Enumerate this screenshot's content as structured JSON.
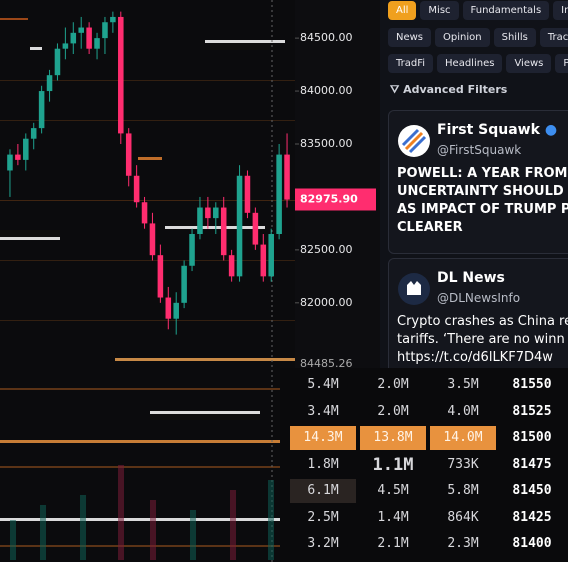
{
  "chart": {
    "type": "candlestick",
    "ylim": [
      81460,
      84860
    ],
    "yticks": [
      {
        "value": 84500,
        "label": "84500.00"
      },
      {
        "value": 84000,
        "label": "84000.00"
      },
      {
        "value": 83500,
        "label": "83500.00"
      },
      {
        "value": 82500,
        "label": "82500.00"
      },
      {
        "value": 82000,
        "label": "82000.00"
      }
    ],
    "current_price": {
      "value": 82975.9,
      "label": "82975.90"
    },
    "lower_pane_price": "84485.26",
    "up_color": "#1fa38f",
    "down_color": "#ff2d6f",
    "candles": [
      {
        "open": 83250,
        "high": 83450,
        "low": 83000,
        "close": 83400
      },
      {
        "open": 83400,
        "high": 83500,
        "low": 83300,
        "close": 83350
      },
      {
        "open": 83350,
        "high": 83600,
        "low": 83250,
        "close": 83550
      },
      {
        "open": 83550,
        "high": 83700,
        "low": 83450,
        "close": 83650
      },
      {
        "open": 83650,
        "high": 84050,
        "low": 83600,
        "close": 84000
      },
      {
        "open": 84000,
        "high": 84200,
        "low": 83900,
        "close": 84150
      },
      {
        "open": 84150,
        "high": 84450,
        "low": 84100,
        "close": 84400
      },
      {
        "open": 84400,
        "high": 84600,
        "low": 84300,
        "close": 84450
      },
      {
        "open": 84450,
        "high": 84650,
        "low": 84350,
        "close": 84550
      },
      {
        "open": 84550,
        "high": 84700,
        "low": 84400,
        "close": 84600
      },
      {
        "open": 84600,
        "high": 84650,
        "low": 84350,
        "close": 84400
      },
      {
        "open": 84400,
        "high": 84550,
        "low": 84300,
        "close": 84500
      },
      {
        "open": 84500,
        "high": 84700,
        "low": 84350,
        "close": 84650
      },
      {
        "open": 84650,
        "high": 84750,
        "low": 84550,
        "close": 84700
      },
      {
        "open": 84700,
        "high": 84750,
        "low": 83500,
        "close": 83600
      },
      {
        "open": 83600,
        "high": 83650,
        "low": 83100,
        "close": 83200
      },
      {
        "open": 83200,
        "high": 83300,
        "low": 82900,
        "close": 82950
      },
      {
        "open": 82950,
        "high": 83000,
        "low": 82700,
        "close": 82750
      },
      {
        "open": 82750,
        "high": 82850,
        "low": 82400,
        "close": 82450
      },
      {
        "open": 82450,
        "high": 82550,
        "low": 82000,
        "close": 82050
      },
      {
        "open": 82050,
        "high": 82150,
        "low": 81750,
        "close": 81850
      },
      {
        "open": 81850,
        "high": 82100,
        "low": 81700,
        "close": 82000
      },
      {
        "open": 82000,
        "high": 82400,
        "low": 81950,
        "close": 82350
      },
      {
        "open": 82350,
        "high": 82700,
        "low": 82300,
        "close": 82650
      },
      {
        "open": 82650,
        "high": 83000,
        "low": 82600,
        "close": 82900
      },
      {
        "open": 82900,
        "high": 83000,
        "low": 82700,
        "close": 82800
      },
      {
        "open": 82800,
        "high": 82950,
        "low": 82650,
        "close": 82900
      },
      {
        "open": 82900,
        "high": 83000,
        "low": 82400,
        "close": 82450
      },
      {
        "open": 82450,
        "high": 82500,
        "low": 82200,
        "close": 82250
      },
      {
        "open": 82250,
        "high": 83300,
        "low": 82200,
        "close": 83200
      },
      {
        "open": 83200,
        "high": 83250,
        "low": 82800,
        "close": 82850
      },
      {
        "open": 82850,
        "high": 82900,
        "low": 82500,
        "close": 82550
      },
      {
        "open": 82550,
        "high": 82650,
        "low": 82200,
        "close": 82250
      },
      {
        "open": 82250,
        "high": 82700,
        "low": 82200,
        "close": 82650
      },
      {
        "open": 82650,
        "high": 83500,
        "low": 82600,
        "close": 83400
      },
      {
        "open": 83400,
        "high": 83600,
        "low": 82900,
        "close": 82975
      }
    ]
  },
  "filters": {
    "rows": [
      [
        "All",
        "Misc",
        "Fundamentals",
        "Inst"
      ],
      [
        "News",
        "Opinion",
        "Shills",
        "Trackin"
      ],
      [
        "TradFi",
        "Headlines",
        "Views",
        "Po"
      ]
    ],
    "advanced": "Advanced Filters"
  },
  "feed": [
    {
      "name": "First Squawk",
      "handle": "@FirstSquawk",
      "lines": [
        "POWELL: A YEAR FROM N",
        "UNCERTAINTY SHOULD E",
        "AS IMPACT OF TRUMP PO",
        "CLEARER"
      ]
    },
    {
      "name": "DL News",
      "handle": "@DLNewsInfo",
      "lines": [
        "Crypto crashes as China re",
        "tariffs. ‘There are no winn",
        "https://t.co/d6lLKF7D4w"
      ]
    }
  ],
  "orderbook": {
    "rows": [
      [
        "5.4M",
        "2.0M",
        "3.5M",
        "81550"
      ],
      [
        "3.4M",
        "2.0M",
        "4.0M",
        "81525"
      ],
      [
        "14.3M",
        "13.8M",
        "14.0M",
        "81500"
      ],
      [
        "1.8M",
        "1.1M",
        "733K",
        "81475"
      ],
      [
        "6.1M",
        "4.5M",
        "5.8M",
        "81450"
      ],
      [
        "2.5M",
        "1.4M",
        "864K",
        "81425"
      ],
      [
        "3.2M",
        "2.1M",
        "2.3M",
        "81400"
      ]
    ]
  }
}
